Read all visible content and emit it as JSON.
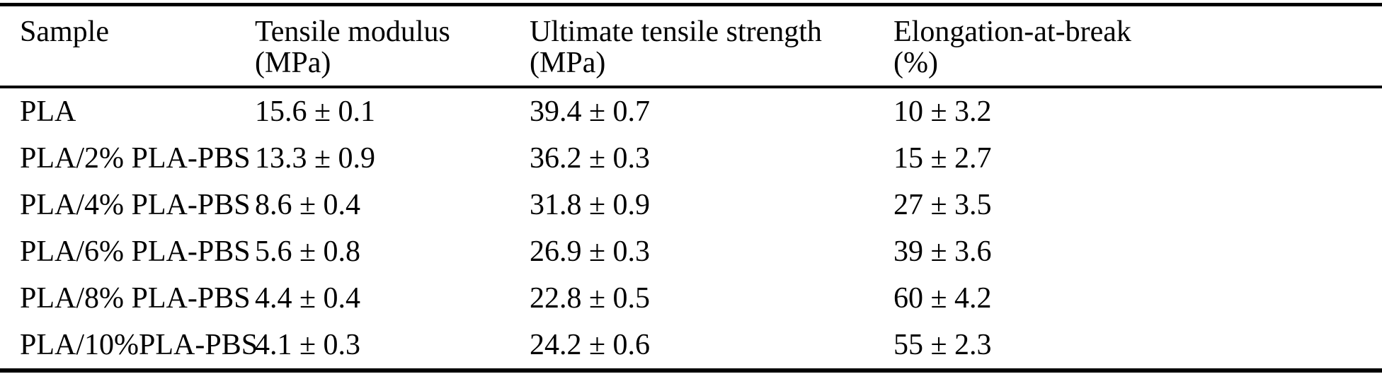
{
  "page": {
    "background_color": "#ffffff",
    "text_color": "#000000",
    "rule_color": "#000000"
  },
  "table": {
    "columns": [
      {
        "label": "Sample"
      },
      {
        "label": "Tensile modulus (MPa)"
      },
      {
        "label": "Ultimate tensile strength (MPa)"
      },
      {
        "label": "Elongation-at-break\n(%)"
      }
    ],
    "rows": [
      {
        "sample": "PLA",
        "tensile_modulus": "15.6 ± 0.1",
        "ultimate_tensile_strength": "39.4 ± 0.7",
        "elongation_at_break": "10 ± 3.2"
      },
      {
        "sample": "PLA/2% PLA-PBS",
        "tensile_modulus": "13.3 ± 0.9",
        "ultimate_tensile_strength": "36.2 ± 0.3",
        "elongation_at_break": "15 ± 2.7"
      },
      {
        "sample": "PLA/4% PLA-PBS",
        "tensile_modulus": "8.6 ± 0.4",
        "ultimate_tensile_strength": "31.8 ± 0.9",
        "elongation_at_break": "27 ± 3.5"
      },
      {
        "sample": "PLA/6% PLA-PBS",
        "tensile_modulus": "5.6 ± 0.8",
        "ultimate_tensile_strength": "26.9 ± 0.3",
        "elongation_at_break": "39 ± 3.6"
      },
      {
        "sample": "PLA/8% PLA-PBS",
        "tensile_modulus": "4.4 ± 0.4",
        "ultimate_tensile_strength": "22.8 ± 0.5",
        "elongation_at_break": "60 ± 4.2"
      },
      {
        "sample": "PLA/10%PLA-PBS",
        "tensile_modulus": "4.1 ± 0.3",
        "ultimate_tensile_strength": "24.2 ± 0.6",
        "elongation_at_break": "55 ± 2.3"
      }
    ]
  }
}
